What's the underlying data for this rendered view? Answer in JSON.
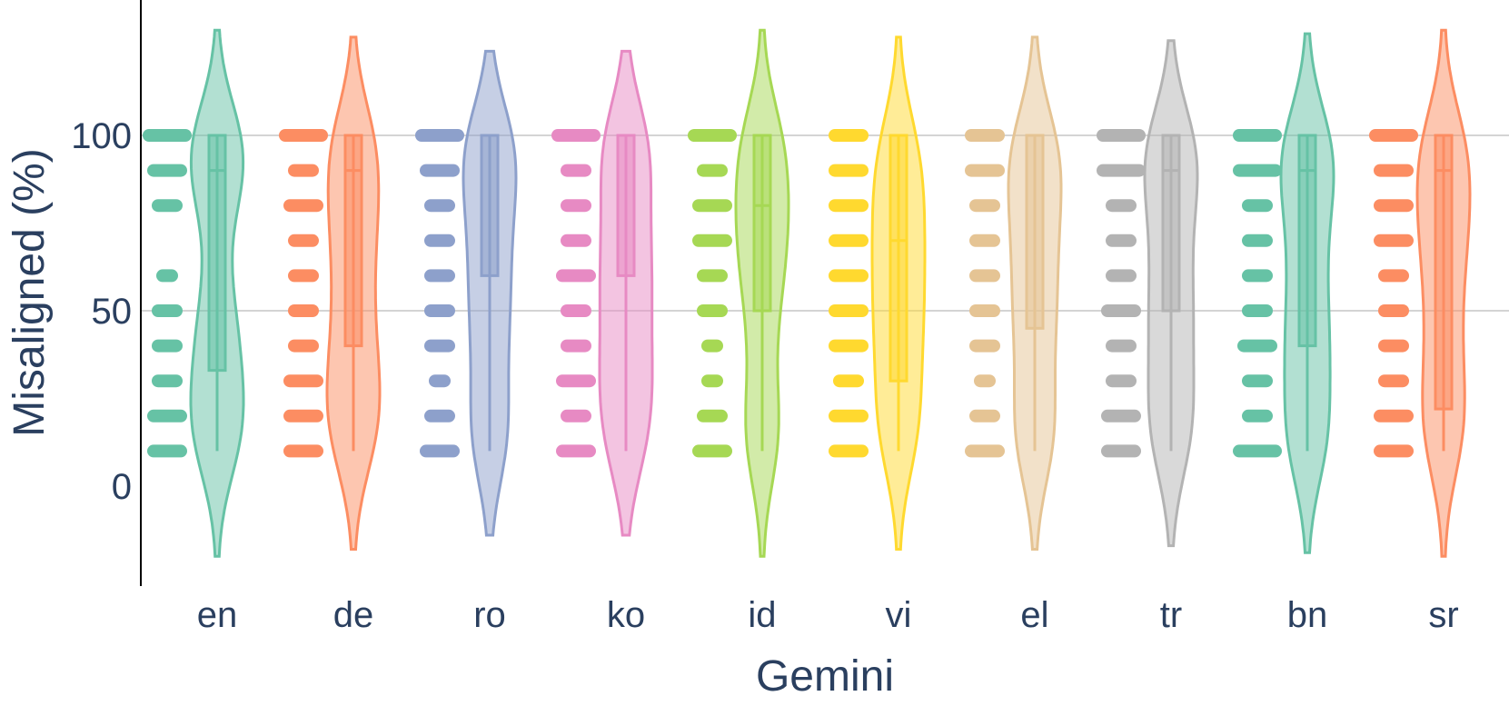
{
  "chart_data": {
    "type": "violin",
    "xlabel": "Gemini",
    "ylabel": "Misaligned (%)",
    "ylim": [
      -28,
      140
    ],
    "yticks": [
      0,
      50,
      100
    ],
    "grid": true,
    "legend": "none",
    "categories": [
      "en",
      "de",
      "ro",
      "ko",
      "id",
      "vi",
      "el",
      "tr",
      "bn",
      "sr"
    ],
    "series": [
      {
        "category": "en",
        "color": "#66c2a5",
        "q1": 33,
        "median": 90,
        "q3": 100,
        "whisker_low": 10,
        "whisker_high": 100,
        "kde_min": -20,
        "kde_max": 130,
        "points": [
          {
            "v": 100,
            "n": 4
          },
          {
            "v": 90,
            "n": 3
          },
          {
            "v": 80,
            "n": 2
          },
          {
            "v": 60,
            "n": 1
          },
          {
            "v": 50,
            "n": 2
          },
          {
            "v": 40,
            "n": 2
          },
          {
            "v": 30,
            "n": 2
          },
          {
            "v": 20,
            "n": 3
          },
          {
            "v": 10,
            "n": 3
          }
        ]
      },
      {
        "category": "de",
        "color": "#fc8d62",
        "q1": 40,
        "median": 90,
        "q3": 100,
        "whisker_low": 10,
        "whisker_high": 100,
        "kde_min": -18,
        "kde_max": 128,
        "points": [
          {
            "v": 100,
            "n": 4
          },
          {
            "v": 90,
            "n": 2
          },
          {
            "v": 80,
            "n": 3
          },
          {
            "v": 70,
            "n": 2
          },
          {
            "v": 60,
            "n": 2
          },
          {
            "v": 50,
            "n": 2
          },
          {
            "v": 40,
            "n": 2
          },
          {
            "v": 30,
            "n": 3
          },
          {
            "v": 20,
            "n": 3
          },
          {
            "v": 10,
            "n": 3
          }
        ]
      },
      {
        "category": "ro",
        "color": "#8da0cb",
        "q1": 60,
        "median": 100,
        "q3": 100,
        "whisker_low": 10,
        "whisker_high": 100,
        "kde_min": -14,
        "kde_max": 124,
        "points": [
          {
            "v": 100,
            "n": 4
          },
          {
            "v": 90,
            "n": 3
          },
          {
            "v": 80,
            "n": 2
          },
          {
            "v": 70,
            "n": 2
          },
          {
            "v": 60,
            "n": 2
          },
          {
            "v": 50,
            "n": 2
          },
          {
            "v": 40,
            "n": 2
          },
          {
            "v": 30,
            "n": 1
          },
          {
            "v": 20,
            "n": 2
          },
          {
            "v": 10,
            "n": 3
          }
        ]
      },
      {
        "category": "ko",
        "color": "#e78ac3",
        "q1": 60,
        "median": 100,
        "q3": 100,
        "whisker_low": 10,
        "whisker_high": 100,
        "kde_min": -14,
        "kde_max": 124,
        "points": [
          {
            "v": 100,
            "n": 4
          },
          {
            "v": 90,
            "n": 2
          },
          {
            "v": 80,
            "n": 2
          },
          {
            "v": 70,
            "n": 2
          },
          {
            "v": 60,
            "n": 3
          },
          {
            "v": 50,
            "n": 2
          },
          {
            "v": 40,
            "n": 2
          },
          {
            "v": 30,
            "n": 3
          },
          {
            "v": 20,
            "n": 2
          },
          {
            "v": 10,
            "n": 3
          }
        ]
      },
      {
        "category": "id",
        "color": "#a6d854",
        "q1": 50,
        "median": 80,
        "q3": 100,
        "whisker_low": 10,
        "whisker_high": 100,
        "kde_min": -20,
        "kde_max": 130,
        "points": [
          {
            "v": 100,
            "n": 4
          },
          {
            "v": 90,
            "n": 2
          },
          {
            "v": 80,
            "n": 3
          },
          {
            "v": 70,
            "n": 3
          },
          {
            "v": 60,
            "n": 2
          },
          {
            "v": 50,
            "n": 2
          },
          {
            "v": 40,
            "n": 1
          },
          {
            "v": 30,
            "n": 1
          },
          {
            "v": 20,
            "n": 2
          },
          {
            "v": 10,
            "n": 3
          }
        ]
      },
      {
        "category": "vi",
        "color": "#ffd92f",
        "q1": 30,
        "median": 70,
        "q3": 100,
        "whisker_low": 10,
        "whisker_high": 100,
        "kde_min": -18,
        "kde_max": 128,
        "points": [
          {
            "v": 100,
            "n": 3
          },
          {
            "v": 90,
            "n": 3
          },
          {
            "v": 80,
            "n": 3
          },
          {
            "v": 70,
            "n": 3
          },
          {
            "v": 60,
            "n": 3
          },
          {
            "v": 50,
            "n": 3
          },
          {
            "v": 40,
            "n": 3
          },
          {
            "v": 30,
            "n": 2
          },
          {
            "v": 20,
            "n": 3
          },
          {
            "v": 10,
            "n": 3
          }
        ]
      },
      {
        "category": "el",
        "color": "#e5c494",
        "q1": 45,
        "median": 100,
        "q3": 100,
        "whisker_low": 10,
        "whisker_high": 100,
        "kde_min": -18,
        "kde_max": 128,
        "points": [
          {
            "v": 100,
            "n": 3
          },
          {
            "v": 90,
            "n": 3
          },
          {
            "v": 80,
            "n": 2
          },
          {
            "v": 70,
            "n": 2
          },
          {
            "v": 60,
            "n": 2
          },
          {
            "v": 50,
            "n": 2
          },
          {
            "v": 40,
            "n": 2
          },
          {
            "v": 30,
            "n": 1
          },
          {
            "v": 20,
            "n": 2
          },
          {
            "v": 10,
            "n": 3
          }
        ]
      },
      {
        "category": "tr",
        "color": "#b3b3b3",
        "q1": 50,
        "median": 90,
        "q3": 100,
        "whisker_low": 10,
        "whisker_high": 100,
        "kde_min": -17,
        "kde_max": 127,
        "points": [
          {
            "v": 100,
            "n": 4
          },
          {
            "v": 90,
            "n": 4
          },
          {
            "v": 80,
            "n": 2
          },
          {
            "v": 70,
            "n": 2
          },
          {
            "v": 60,
            "n": 2
          },
          {
            "v": 50,
            "n": 3
          },
          {
            "v": 40,
            "n": 2
          },
          {
            "v": 30,
            "n": 2
          },
          {
            "v": 20,
            "n": 3
          },
          {
            "v": 10,
            "n": 3
          }
        ]
      },
      {
        "category": "bn",
        "color": "#66c2a5",
        "q1": 40,
        "median": 90,
        "q3": 100,
        "whisker_low": 10,
        "whisker_high": 100,
        "kde_min": -19,
        "kde_max": 129,
        "points": [
          {
            "v": 100,
            "n": 4
          },
          {
            "v": 90,
            "n": 4
          },
          {
            "v": 80,
            "n": 2
          },
          {
            "v": 70,
            "n": 2
          },
          {
            "v": 60,
            "n": 2
          },
          {
            "v": 50,
            "n": 2
          },
          {
            "v": 40,
            "n": 3
          },
          {
            "v": 30,
            "n": 2
          },
          {
            "v": 20,
            "n": 2
          },
          {
            "v": 10,
            "n": 4
          }
        ]
      },
      {
        "category": "sr",
        "color": "#fc8d62",
        "q1": 22,
        "median": 90,
        "q3": 100,
        "whisker_low": 10,
        "whisker_high": 100,
        "kde_min": -20,
        "kde_max": 130,
        "points": [
          {
            "v": 100,
            "n": 4
          },
          {
            "v": 90,
            "n": 3
          },
          {
            "v": 80,
            "n": 3
          },
          {
            "v": 70,
            "n": 3
          },
          {
            "v": 60,
            "n": 2
          },
          {
            "v": 50,
            "n": 2
          },
          {
            "v": 40,
            "n": 2
          },
          {
            "v": 30,
            "n": 2
          },
          {
            "v": 20,
            "n": 3
          },
          {
            "v": 10,
            "n": 3
          }
        ]
      }
    ]
  }
}
